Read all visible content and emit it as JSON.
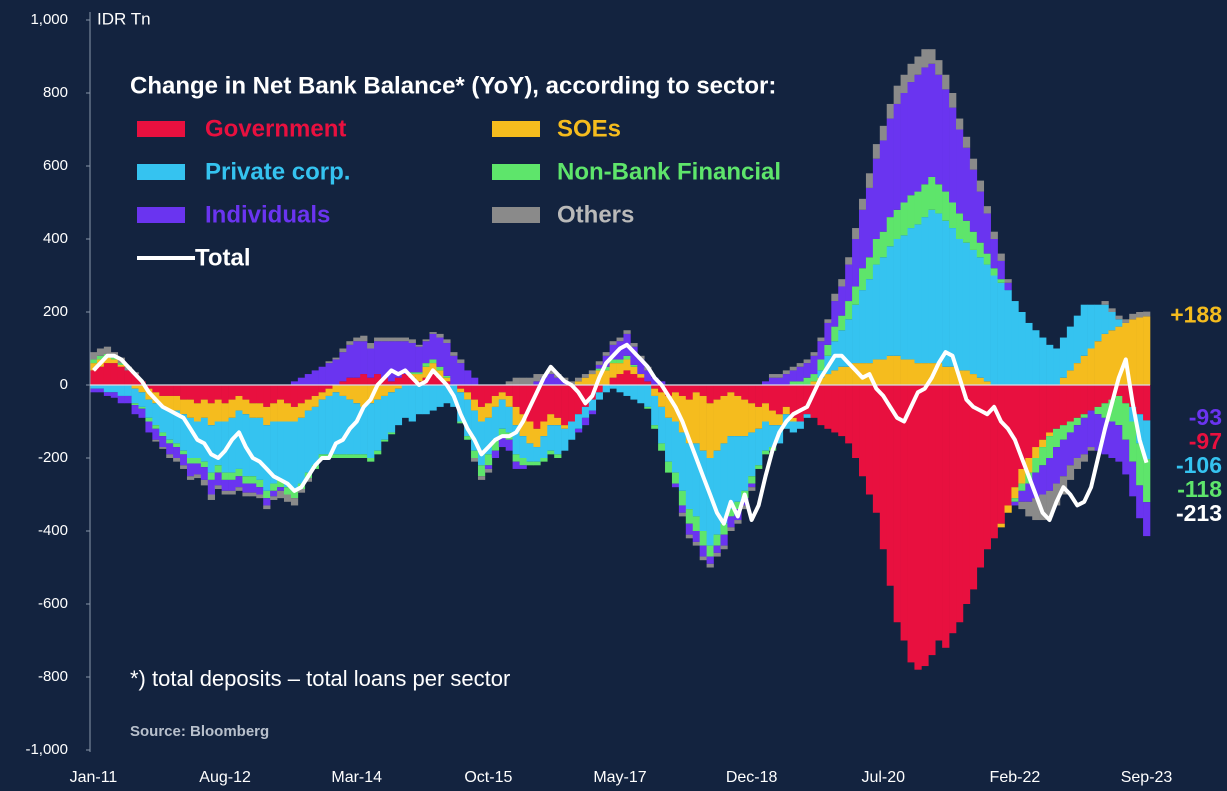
{
  "chart_data": {
    "type": "stacked_bar",
    "title": "Change in Net Bank Balance* (YoY), according to sector:",
    "y_axis_label": "IDR Tn",
    "footnote": "*) total deposits – total loans per sector",
    "source": "Source: Bloomberg",
    "ylim": [
      -1000,
      1000
    ],
    "yticks": [
      {
        "value": -1000,
        "label": "-1,000"
      },
      -800,
      -600,
      -400,
      -200,
      0,
      200,
      400,
      600,
      800,
      {
        "value": 1000,
        "label": "1,000"
      }
    ],
    "categories": [
      "Jan-11",
      null,
      null,
      null,
      null,
      null,
      null,
      null,
      null,
      null,
      null,
      null,
      null,
      null,
      null,
      null,
      null,
      null,
      null,
      "Aug-12",
      null,
      null,
      null,
      null,
      null,
      null,
      null,
      null,
      null,
      null,
      null,
      null,
      null,
      null,
      null,
      null,
      null,
      null,
      "Mar-14",
      null,
      null,
      null,
      null,
      null,
      null,
      null,
      null,
      null,
      null,
      null,
      null,
      null,
      null,
      null,
      null,
      null,
      null,
      "Oct-15",
      null,
      null,
      null,
      null,
      null,
      null,
      null,
      null,
      null,
      null,
      null,
      null,
      null,
      null,
      null,
      null,
      null,
      null,
      "May-17",
      null,
      null,
      null,
      null,
      null,
      null,
      null,
      null,
      null,
      null,
      null,
      null,
      null,
      null,
      null,
      null,
      null,
      null,
      "Dec-18",
      null,
      null,
      null,
      null,
      null,
      null,
      null,
      null,
      null,
      null,
      null,
      null,
      null,
      null,
      null,
      null,
      null,
      null,
      "Jul-20",
      null,
      null,
      null,
      null,
      null,
      null,
      null,
      null,
      null,
      null,
      null,
      null,
      null,
      null,
      null,
      null,
      null,
      null,
      "Feb-22",
      null,
      null,
      null,
      null,
      null,
      null,
      null,
      null,
      null,
      null,
      null,
      null,
      null,
      null,
      null,
      null,
      null,
      null,
      "Sep-23"
    ],
    "series": [
      {
        "name": "Government",
        "color": "#e8103f",
        "end_label": "-97",
        "values": [
          40,
          50,
          60,
          60,
          50,
          40,
          30,
          10,
          -10,
          -20,
          -30,
          -30,
          -30,
          -40,
          -40,
          -50,
          -40,
          -50,
          -40,
          -50,
          -40,
          -30,
          -40,
          -50,
          -50,
          -60,
          -50,
          -40,
          -50,
          -60,
          -50,
          -40,
          -30,
          -20,
          -10,
          0,
          10,
          20,
          20,
          30,
          20,
          30,
          20,
          10,
          20,
          30,
          20,
          10,
          20,
          30,
          20,
          10,
          0,
          -10,
          -20,
          -40,
          -60,
          -50,
          -30,
          -20,
          -30,
          -60,
          -80,
          -100,
          -120,
          -100,
          -80,
          -90,
          -110,
          -100,
          -80,
          -60,
          -40,
          -20,
          0,
          20,
          30,
          40,
          30,
          20,
          10,
          -10,
          -20,
          -30,
          -20,
          -30,
          -40,
          -20,
          -30,
          -50,
          -40,
          -30,
          -20,
          -30,
          -40,
          -50,
          -60,
          -50,
          -70,
          -80,
          -60,
          -90,
          -100,
          -80,
          -90,
          -110,
          -120,
          -130,
          -140,
          -160,
          -200,
          -250,
          -300,
          -350,
          -450,
          -550,
          -650,
          -700,
          -760,
          -780,
          -770,
          -740,
          -700,
          -720,
          -680,
          -650,
          -600,
          -560,
          -500,
          -450,
          -420,
          -380,
          -330,
          -280,
          -230,
          -200,
          -170,
          -150,
          -130,
          -120,
          -110,
          -100,
          -90,
          -80,
          -70,
          -60,
          -50,
          -40,
          -30,
          -50,
          -60,
          -80,
          -97
        ]
      },
      {
        "name": "SOEs",
        "color": "#f5bc1e",
        "end_label": "+188",
        "values": [
          20,
          20,
          15,
          10,
          5,
          0,
          -10,
          -20,
          -30,
          -30,
          -30,
          -40,
          -40,
          -40,
          -50,
          -50,
          -50,
          -60,
          -60,
          -50,
          -50,
          -40,
          -40,
          -40,
          -40,
          -50,
          -50,
          -60,
          -50,
          -40,
          -40,
          -30,
          -30,
          -20,
          -20,
          -20,
          -30,
          -40,
          -50,
          -60,
          -50,
          -40,
          -30,
          -20,
          -10,
          0,
          10,
          20,
          30,
          30,
          20,
          10,
          0,
          -10,
          -20,
          -30,
          -40,
          -40,
          -30,
          -20,
          -30,
          -50,
          -60,
          -60,
          -50,
          -40,
          -30,
          -20,
          -10,
          0,
          10,
          20,
          30,
          40,
          40,
          40,
          30,
          30,
          20,
          10,
          0,
          -20,
          -40,
          -60,
          -80,
          -100,
          -120,
          -140,
          -150,
          -150,
          -140,
          -130,
          -120,
          -110,
          -100,
          -80,
          -60,
          -50,
          -40,
          -30,
          -20,
          -10,
          0,
          0,
          10,
          20,
          30,
          40,
          50,
          50,
          60,
          60,
          60,
          70,
          70,
          80,
          80,
          70,
          70,
          60,
          60,
          60,
          60,
          50,
          50,
          40,
          40,
          30,
          20,
          10,
          0,
          -10,
          -20,
          -30,
          -40,
          -40,
          -30,
          -20,
          -10,
          0,
          20,
          40,
          60,
          80,
          100,
          120,
          140,
          150,
          160,
          170,
          180,
          185,
          188
        ]
      },
      {
        "name": "Private corp.",
        "color": "#35c3f0",
        "end_label": "-106",
        "values": [
          -10,
          -10,
          -20,
          -20,
          -30,
          -30,
          -40,
          -40,
          -50,
          -60,
          -70,
          -80,
          -90,
          -100,
          -110,
          -100,
          -120,
          -130,
          -120,
          -140,
          -150,
          -160,
          -170,
          -160,
          -170,
          -180,
          -170,
          -160,
          -180,
          -190,
          -180,
          -170,
          -160,
          -150,
          -160,
          -170,
          -160,
          -150,
          -140,
          -130,
          -150,
          -140,
          -120,
          -110,
          -100,
          -90,
          -100,
          -80,
          -80,
          -70,
          -60,
          -50,
          -60,
          -80,
          -100,
          -110,
          -120,
          -100,
          -90,
          -80,
          -70,
          -80,
          -60,
          -50,
          -40,
          -60,
          -70,
          -80,
          -60,
          -50,
          -40,
          -30,
          -30,
          -20,
          -20,
          -10,
          -20,
          -30,
          -40,
          -50,
          -60,
          -80,
          -100,
          -120,
          -140,
          -160,
          -180,
          -200,
          -220,
          -240,
          -230,
          -220,
          -200,
          -180,
          -150,
          -120,
          -100,
          -80,
          -60,
          -50,
          -40,
          -30,
          -20,
          -10,
          0,
          20,
          50,
          80,
          100,
          130,
          160,
          200,
          230,
          260,
          280,
          300,
          320,
          340,
          360,
          380,
          400,
          420,
          410,
          400,
          380,
          360,
          350,
          340,
          330,
          320,
          300,
          280,
          260,
          230,
          200,
          170,
          150,
          130,
          110,
          100,
          110,
          120,
          130,
          140,
          120,
          100,
          80,
          50,
          20,
          0,
          -40,
          -80,
          -106
        ]
      },
      {
        "name": "Non-Bank Financial",
        "color": "#5ee56b",
        "end_label": "-118",
        "values": [
          10,
          10,
          10,
          5,
          5,
          0,
          -5,
          -5,
          -10,
          -10,
          -10,
          -10,
          -10,
          -10,
          -15,
          -15,
          -15,
          -20,
          -20,
          -20,
          -20,
          -20,
          -20,
          -20,
          -20,
          -20,
          -20,
          -20,
          -20,
          -20,
          -15,
          -15,
          -10,
          -10,
          -10,
          -10,
          -10,
          -10,
          -10,
          -10,
          -10,
          -10,
          -5,
          -5,
          0,
          0,
          5,
          5,
          10,
          10,
          10,
          5,
          0,
          -5,
          -10,
          -20,
          -30,
          -30,
          -30,
          -20,
          -20,
          -20,
          -20,
          -10,
          -10,
          -10,
          -10,
          -10,
          0,
          0,
          0,
          0,
          0,
          5,
          10,
          10,
          10,
          10,
          5,
          0,
          -5,
          -10,
          -20,
          -30,
          -30,
          -40,
          -40,
          -40,
          -40,
          -30,
          -30,
          -30,
          -20,
          -20,
          -20,
          -20,
          -10,
          -10,
          -10,
          0,
          0,
          10,
          10,
          20,
          20,
          30,
          30,
          40,
          40,
          50,
          50,
          60,
          60,
          70,
          70,
          80,
          80,
          90,
          90,
          90,
          90,
          90,
          80,
          80,
          70,
          70,
          60,
          50,
          40,
          30,
          20,
          10,
          0,
          -10,
          -20,
          -30,
          -40,
          -50,
          -60,
          -50,
          -40,
          -30,
          -20,
          -10,
          0,
          -20,
          -40,
          -60,
          -80,
          -100,
          -110,
          -115,
          -118
        ]
      },
      {
        "name": "Individuals",
        "color": "#6a34f0",
        "end_label": "-93",
        "values": [
          -10,
          -10,
          -10,
          -15,
          -20,
          -20,
          -25,
          -25,
          -30,
          -30,
          -30,
          -30,
          -30,
          -30,
          -35,
          -30,
          -35,
          -40,
          -35,
          -30,
          -30,
          -30,
          -25,
          -25,
          -20,
          -20,
          -15,
          -10,
          0,
          10,
          20,
          30,
          40,
          50,
          60,
          70,
          80,
          90,
          100,
          90,
          80,
          90,
          100,
          110,
          100,
          90,
          80,
          70,
          60,
          70,
          80,
          90,
          80,
          60,
          40,
          20,
          0,
          -10,
          -20,
          -30,
          -30,
          -20,
          -10,
          0,
          10,
          20,
          30,
          20,
          10,
          0,
          -10,
          -20,
          -10,
          10,
          30,
          40,
          50,
          60,
          50,
          40,
          30,
          20,
          10,
          0,
          -10,
          -20,
          -30,
          -30,
          -30,
          -20,
          -20,
          -30,
          -30,
          -30,
          -20,
          -10,
          0,
          10,
          20,
          20,
          30,
          30,
          40,
          40,
          50,
          50,
          60,
          70,
          80,
          100,
          130,
          160,
          190,
          220,
          250,
          270,
          290,
          300,
          310,
          320,
          320,
          310,
          300,
          280,
          260,
          230,
          200,
          170,
          140,
          110,
          80,
          50,
          20,
          -10,
          -30,
          -50,
          -70,
          -80,
          -90,
          -100,
          -100,
          -90,
          -90,
          -100,
          -100,
          -100,
          -100,
          -100,
          -100,
          -95,
          -95,
          -90,
          -93
        ]
      },
      {
        "name": "Others",
        "color": "#8a8a8a",
        "values": [
          20,
          20,
          20,
          15,
          15,
          10,
          5,
          0,
          0,
          -5,
          -5,
          -10,
          -10,
          -10,
          -10,
          -10,
          -15,
          -15,
          -10,
          -10,
          -10,
          -10,
          -10,
          -10,
          -10,
          -10,
          -10,
          -20,
          -20,
          -20,
          -10,
          -10,
          0,
          0,
          5,
          5,
          10,
          10,
          10,
          15,
          15,
          10,
          10,
          10,
          10,
          10,
          10,
          5,
          5,
          5,
          10,
          10,
          10,
          10,
          0,
          -10,
          -10,
          -10,
          0,
          0,
          10,
          20,
          20,
          20,
          20,
          10,
          10,
          10,
          10,
          10,
          10,
          10,
          10,
          10,
          10,
          10,
          10,
          10,
          10,
          10,
          10,
          0,
          0,
          0,
          0,
          -10,
          -10,
          -10,
          -10,
          -10,
          -10,
          -10,
          -10,
          -10,
          -10,
          -10,
          0,
          0,
          10,
          10,
          10,
          10,
          10,
          10,
          10,
          10,
          10,
          20,
          20,
          20,
          30,
          30,
          40,
          40,
          40,
          40,
          50,
          50,
          50,
          50,
          50,
          40,
          40,
          40,
          40,
          30,
          30,
          30,
          30,
          20,
          20,
          20,
          10,
          0,
          -20,
          -40,
          -60,
          -70,
          -70,
          -60,
          -50,
          -40,
          -30,
          -20,
          -10,
          0,
          10,
          10,
          10,
          10,
          15,
          15,
          13
        ]
      },
      {
        "name": "Total",
        "type": "line",
        "color": "#ffffff",
        "end_label": "-213",
        "values": [
          40,
          60,
          80,
          80,
          70,
          50,
          30,
          10,
          -20,
          -40,
          -60,
          -70,
          -80,
          -90,
          -120,
          -150,
          -160,
          -190,
          -200,
          -180,
          -150,
          -130,
          -170,
          -200,
          -210,
          -230,
          -250,
          -260,
          -270,
          -290,
          -280,
          -250,
          -220,
          -200,
          -200,
          -160,
          -150,
          -120,
          -100,
          -60,
          -40,
          0,
          20,
          40,
          30,
          40,
          20,
          0,
          10,
          40,
          20,
          0,
          -30,
          -80,
          -120,
          -150,
          -190,
          -170,
          -150,
          -140,
          -140,
          -130,
          -100,
          -60,
          -20,
          20,
          50,
          30,
          10,
          0,
          -20,
          -50,
          -30,
          20,
          60,
          80,
          100,
          110,
          90,
          70,
          50,
          20,
          0,
          -30,
          -60,
          -100,
          -150,
          -200,
          -250,
          -300,
          -350,
          -380,
          -320,
          -360,
          -300,
          -370,
          -330,
          -250,
          -180,
          -130,
          -100,
          -80,
          -70,
          -60,
          -20,
          20,
          50,
          80,
          80,
          60,
          40,
          20,
          30,
          -10,
          -30,
          -60,
          -90,
          -100,
          -60,
          -20,
          -10,
          20,
          60,
          90,
          80,
          20,
          -40,
          -60,
          -70,
          -80,
          -60,
          -100,
          -120,
          -150,
          -200,
          -250,
          -300,
          -350,
          -370,
          -320,
          -280,
          -300,
          -330,
          -320,
          -280,
          -200,
          -120,
          -50,
          20,
          70,
          -50,
          -150,
          -213
        ]
      }
    ]
  }
}
